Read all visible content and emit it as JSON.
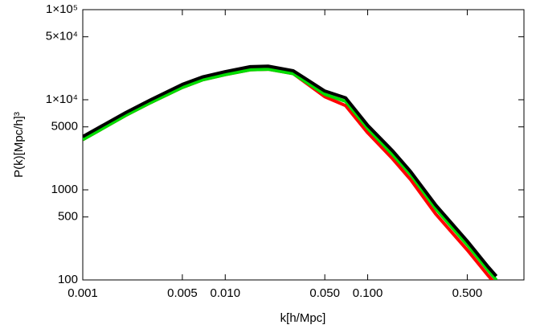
{
  "chart_data": {
    "type": "line",
    "x_label": "k[h/Mpc]",
    "y_label": "P(k)[Mpc/h]³",
    "x": [
      0.001,
      0.002,
      0.003,
      0.005,
      0.007,
      0.01,
      0.015,
      0.02,
      0.03,
      0.05,
      0.07,
      0.1,
      0.15,
      0.2,
      0.3,
      0.5,
      0.7,
      0.8
    ],
    "series": [
      {
        "color": "#ff0000",
        "values": [
          3600,
          6700,
          9300,
          13700,
          16700,
          19000,
          21500,
          21800,
          19500,
          10800,
          8600,
          4300,
          2200,
          1300,
          540,
          215,
          112,
          88
        ]
      },
      {
        "color": "#00dd00",
        "values": [
          3600,
          6700,
          9300,
          13700,
          16700,
          19000,
          21500,
          21800,
          19500,
          11500,
          9600,
          4800,
          2450,
          1480,
          620,
          245,
          128,
          100
        ]
      },
      {
        "color": "#000000",
        "values": [
          3900,
          7200,
          10000,
          14800,
          18000,
          20500,
          23300,
          23600,
          21000,
          12500,
          10500,
          5200,
          2700,
          1600,
          680,
          270,
          140,
          110
        ]
      }
    ],
    "log_x": true,
    "log_y": true,
    "xlim": [
      0.001,
      1.25
    ],
    "ylim": [
      100,
      100000
    ],
    "xticks": [
      {
        "value": 0.001,
        "label": "0.001"
      },
      {
        "value": 0.005,
        "label": "0.005"
      },
      {
        "value": 0.01,
        "label": "0.010"
      },
      {
        "value": 0.05,
        "label": "0.050"
      },
      {
        "value": 0.1,
        "label": "0.100"
      },
      {
        "value": 0.5,
        "label": "0.500"
      }
    ],
    "yticks": [
      100,
      500,
      1000,
      5000,
      {
        "value": 10000,
        "label": "1×10⁴"
      },
      {
        "value": 50000,
        "label": "5×10⁴"
      },
      {
        "value": 100000,
        "label": "1×10⁵"
      }
    ]
  }
}
